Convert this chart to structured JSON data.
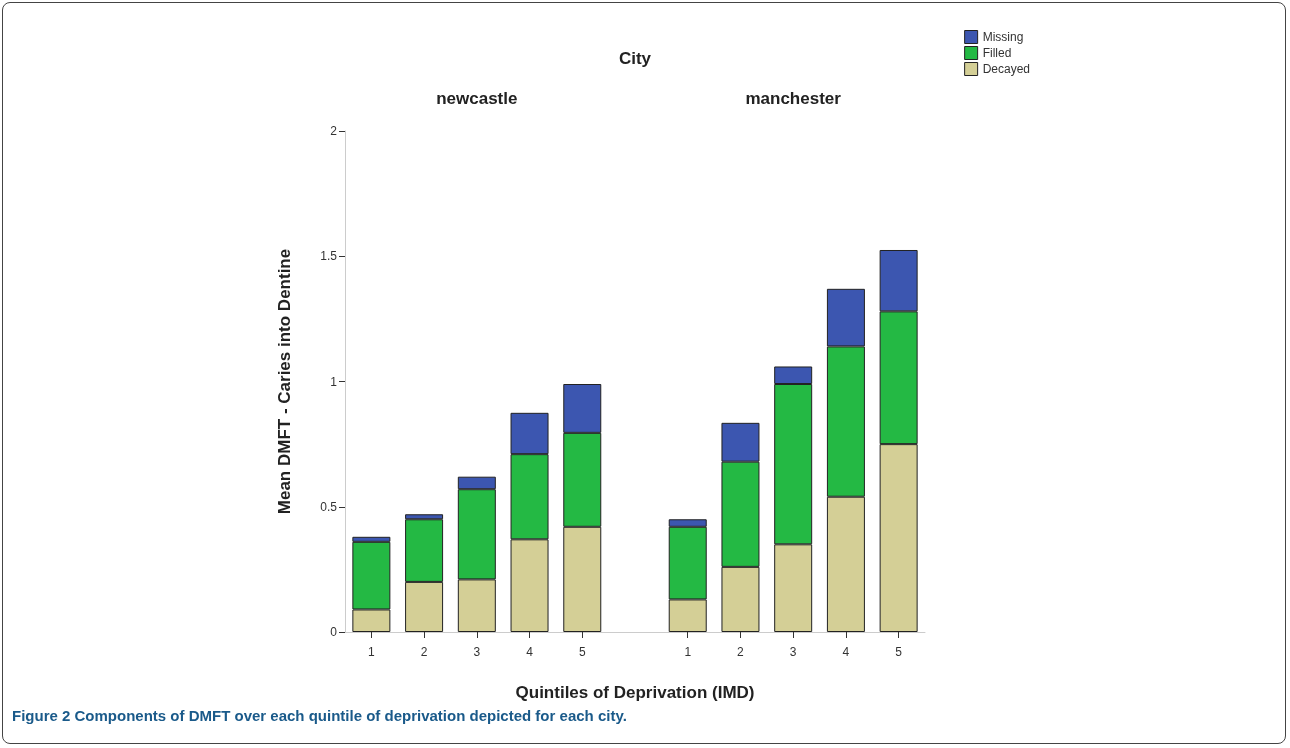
{
  "chart_data": {
    "type": "bar",
    "stacked": true,
    "ylabel": "Mean DMFT - Caries into Dentine",
    "xlabel": "Quintiles of Deprivation (IMD)",
    "annotations": [
      "City",
      "newcastle",
      "manchester",
      "Figure 2 Components of DMFT over each quintile of deprivation depicted for each city."
    ],
    "categories": [
      "1",
      "2",
      "3",
      "4",
      "5",
      null,
      "1",
      "2",
      "3",
      "4",
      "5"
    ],
    "series": [
      {
        "name": "Decayed",
        "color": "#d4cf96",
        "values": [
          0.09,
          0.2,
          0.21,
          0.37,
          0.42,
          null,
          0.13,
          0.26,
          0.35,
          0.54,
          0.75
        ]
      },
      {
        "name": "Filled",
        "color": "#24b944",
        "values": [
          0.27,
          0.25,
          0.36,
          0.34,
          0.375,
          null,
          0.29,
          0.42,
          0.64,
          0.6,
          0.53
        ]
      },
      {
        "name": "Missing",
        "color": "#3c56b0",
        "values": [
          0.02,
          0.02,
          0.05,
          0.165,
          0.195,
          null,
          0.03,
          0.155,
          0.07,
          0.23,
          0.245
        ]
      }
    ],
    "ylim": [
      0,
      2
    ],
    "yticks": [
      0,
      0.5,
      1,
      1.5,
      2
    ],
    "grid": false,
    "legend": "top right"
  }
}
